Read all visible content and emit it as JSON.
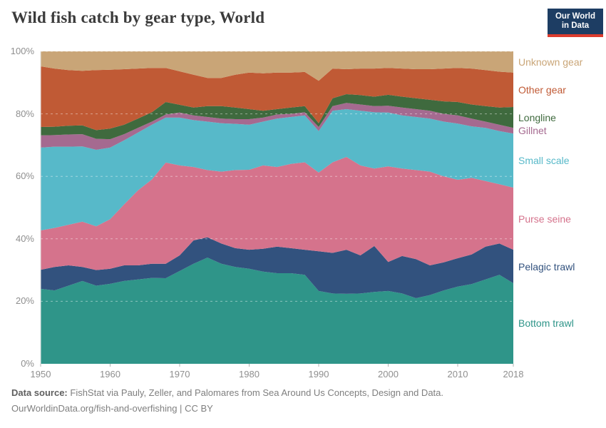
{
  "header": {
    "title": "Wild fish catch by gear type, World",
    "logo": {
      "line1": "Our World",
      "line2": "in Data",
      "bg": "#1d3d63",
      "accent": "#dc3c2e"
    }
  },
  "plot_style": {
    "grid_color": "rgba(255,255,255,0.45)",
    "axis_color": "#e2e2e2",
    "tick_color": "#b3b3b3",
    "label_color": "#8f8f8f"
  },
  "chart_data": {
    "type": "area",
    "stacked": true,
    "normalized_percent": true,
    "title": "Wild fish catch by gear type, World",
    "xlabel": "",
    "ylabel": "",
    "xlim": [
      1950,
      2018
    ],
    "ylim": [
      0,
      100
    ],
    "grid": true,
    "legend_position": "right",
    "x_ticks": [
      {
        "value": 1950,
        "label": "1950"
      },
      {
        "value": 1960,
        "label": "1960"
      },
      {
        "value": 1970,
        "label": "1970"
      },
      {
        "value": 1980,
        "label": "1980"
      },
      {
        "value": 1990,
        "label": "1990"
      },
      {
        "value": 2000,
        "label": "2000"
      },
      {
        "value": 2010,
        "label": "2010"
      },
      {
        "value": 2018,
        "label": "2018"
      }
    ],
    "y_ticks": [
      {
        "value": 0,
        "label": "0%"
      },
      {
        "value": 20,
        "label": "20%"
      },
      {
        "value": 40,
        "label": "40%"
      },
      {
        "value": 60,
        "label": "60%"
      },
      {
        "value": 80,
        "label": "80%"
      },
      {
        "value": 100,
        "label": "100%"
      }
    ],
    "x": [
      1950,
      1952,
      1954,
      1956,
      1958,
      1960,
      1962,
      1964,
      1966,
      1968,
      1970,
      1972,
      1974,
      1976,
      1978,
      1980,
      1982,
      1984,
      1986,
      1988,
      1990,
      1992,
      1994,
      1996,
      1998,
      2000,
      2002,
      2004,
      2006,
      2008,
      2010,
      2012,
      2014,
      2016,
      2018
    ],
    "series": [
      {
        "name": "Bottom trawl",
        "color": "#2f9589",
        "values": [
          24.0,
          23.5,
          25.0,
          26.5,
          25.0,
          25.6,
          26.5,
          27.0,
          27.5,
          27.4,
          29.7,
          32.0,
          34.0,
          32.0,
          31.0,
          30.4,
          29.5,
          29.0,
          29.0,
          28.5,
          23.3,
          22.5,
          22.4,
          22.5,
          23.0,
          23.3,
          22.5,
          21.0,
          22.0,
          23.5,
          24.7,
          25.5,
          27.0,
          28.5,
          25.8
        ]
      },
      {
        "name": "Pelagic trawl",
        "color": "#32527e",
        "values": [
          6.1,
          7.5,
          6.5,
          4.5,
          5.0,
          4.8,
          5.0,
          4.5,
          4.5,
          4.6,
          5.0,
          7.5,
          6.5,
          6.5,
          6.0,
          6.1,
          7.3,
          8.5,
          8.0,
          8.0,
          12.7,
          13.0,
          14.1,
          12.2,
          14.7,
          9.3,
          12.0,
          12.5,
          9.5,
          9.0,
          9.1,
          9.5,
          10.5,
          10.0,
          10.7
        ]
      },
      {
        "name": "Purse seine",
        "color": "#d5738c",
        "values": [
          12.6,
          12.5,
          13.0,
          14.5,
          14.0,
          15.9,
          19.5,
          24.0,
          27.0,
          32.4,
          28.8,
          23.5,
          21.5,
          23.0,
          25.0,
          25.6,
          26.7,
          25.5,
          27.0,
          28.0,
          25.2,
          29.0,
          29.7,
          28.8,
          24.8,
          30.6,
          28.0,
          28.5,
          30.0,
          27.5,
          25.1,
          24.5,
          21.0,
          19.0,
          19.9
        ]
      },
      {
        "name": "Small scale",
        "color": "#57b9c9",
        "values": [
          26.5,
          26.0,
          25.0,
          24.1,
          24.5,
          22.9,
          20.5,
          18.5,
          17.5,
          14.4,
          15.3,
          15.0,
          15.5,
          15.5,
          14.8,
          14.4,
          14.0,
          15.5,
          15.0,
          15.0,
          13.3,
          16.5,
          15.3,
          17.5,
          18.0,
          17.2,
          17.0,
          17.0,
          17.0,
          17.5,
          18.0,
          16.5,
          17.0,
          17.0,
          17.3
        ]
      },
      {
        "name": "Gillnet",
        "color": "#a56a90",
        "values": [
          3.9,
          3.7,
          3.9,
          3.9,
          3.5,
          2.7,
          2.0,
          1.5,
          1.0,
          1.0,
          1.6,
          1.5,
          1.5,
          1.5,
          1.5,
          1.8,
          1.3,
          1.3,
          1.0,
          1.0,
          1.3,
          1.5,
          2.0,
          2.0,
          2.0,
          2.2,
          2.5,
          2.5,
          2.5,
          2.5,
          2.6,
          2.5,
          2.0,
          2.0,
          1.8
        ]
      },
      {
        "name": "Longline",
        "color": "#3f6a3e",
        "values": [
          2.7,
          2.7,
          2.8,
          2.8,
          2.8,
          3.4,
          3.0,
          3.0,
          3.0,
          4.0,
          2.5,
          2.5,
          3.5,
          4.0,
          3.7,
          3.2,
          2.2,
          1.7,
          2.0,
          2.0,
          1.2,
          2.5,
          2.8,
          3.0,
          3.0,
          3.5,
          3.5,
          3.5,
          3.5,
          4.0,
          4.3,
          4.5,
          5.0,
          5.5,
          6.7
        ]
      },
      {
        "name": "Other gear",
        "color": "#c05a35",
        "values": [
          19.4,
          18.6,
          17.8,
          17.5,
          19.2,
          18.8,
          17.8,
          16.0,
          14.2,
          10.9,
          10.7,
          10.5,
          9.0,
          9.0,
          10.5,
          11.7,
          12.0,
          11.7,
          11.2,
          10.9,
          13.6,
          9.5,
          8.0,
          8.5,
          9.0,
          8.6,
          9.0,
          9.3,
          9.8,
          10.5,
          10.9,
          11.5,
          11.5,
          11.5,
          11.0
        ]
      },
      {
        "name": "Unknown gear",
        "color": "#c9a577",
        "values": [
          4.8,
          5.5,
          6.0,
          6.2,
          6.0,
          5.9,
          5.7,
          5.5,
          5.3,
          5.3,
          6.4,
          7.5,
          8.5,
          8.5,
          7.5,
          6.8,
          7.0,
          6.8,
          6.8,
          6.6,
          9.4,
          5.5,
          5.7,
          5.5,
          5.5,
          5.3,
          5.5,
          5.7,
          5.7,
          5.5,
          5.3,
          5.5,
          6.0,
          6.5,
          6.8
        ]
      }
    ]
  },
  "footer": {
    "source_label": "Data source:",
    "source_text": "FishStat via Pauly, Zeller, and Palomares from Sea Around Us Concepts, Design and Data.",
    "url": "OurWorldinData.org/fish-and-overfishing",
    "separator": "|",
    "license": "CC BY"
  }
}
